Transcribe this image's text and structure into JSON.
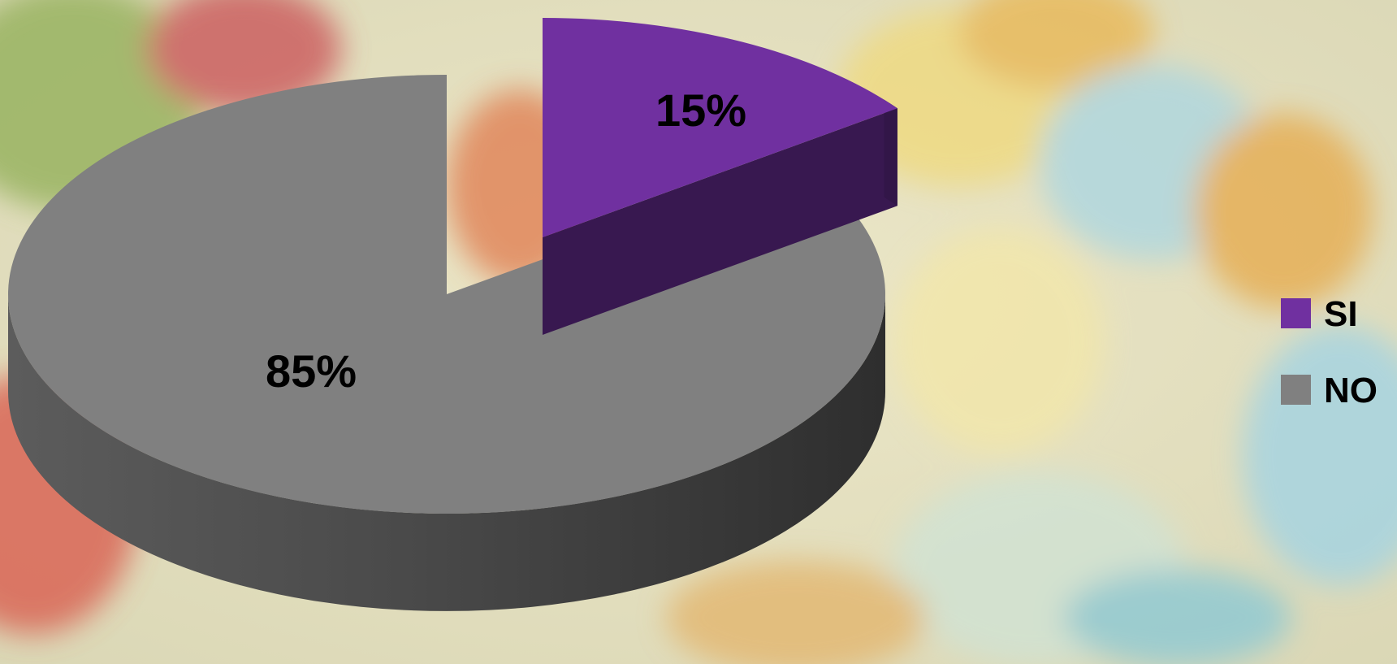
{
  "chart_data": {
    "type": "pie",
    "style": "3d-exploded",
    "categories": [
      "SI",
      "NO"
    ],
    "values": [
      15,
      85
    ],
    "data_labels": [
      "15%",
      "85%"
    ],
    "colors": {
      "SI": "#7030A0",
      "NO": "#808080"
    },
    "legend": {
      "placement": "right",
      "entries": [
        "SI",
        "NO"
      ]
    }
  }
}
